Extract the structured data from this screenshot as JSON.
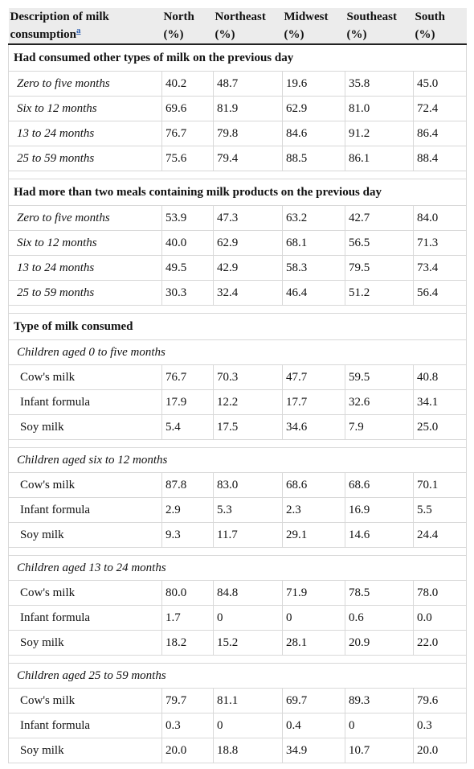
{
  "headers": {
    "desc_line1": "Description of milk",
    "desc_line2": "consumption",
    "footnote": "a",
    "cols": [
      {
        "name": "North",
        "unit": "(%)"
      },
      {
        "name": "Northeast",
        "unit": "(%)"
      },
      {
        "name": "Midwest",
        "unit": "(%)"
      },
      {
        "name": "Southeast",
        "unit": "(%)"
      },
      {
        "name": "South",
        "unit": "(%)"
      }
    ]
  },
  "sections": {
    "s1": {
      "title": "Had consumed other types of milk on the previous day",
      "rows": [
        {
          "label": "Zero to five months",
          "v": [
            "40.2",
            "48.7",
            "19.6",
            "35.8",
            "45.0"
          ]
        },
        {
          "label": "Six to 12 months",
          "v": [
            "69.6",
            "81.9",
            "62.9",
            "81.0",
            "72.4"
          ]
        },
        {
          "label": "13 to 24 months",
          "v": [
            "76.7",
            "79.8",
            "84.6",
            "91.2",
            "86.4"
          ]
        },
        {
          "label": "25 to 59 months",
          "v": [
            "75.6",
            "79.4",
            "88.5",
            "86.1",
            "88.4"
          ]
        }
      ]
    },
    "s2": {
      "title": "Had more than two meals containing milk products on the previous day",
      "rows": [
        {
          "label": "Zero to five months",
          "v": [
            "53.9",
            "47.3",
            "63.2",
            "42.7",
            "84.0"
          ]
        },
        {
          "label": "Six to 12 months",
          "v": [
            "40.0",
            "62.9",
            "68.1",
            "56.5",
            "71.3"
          ]
        },
        {
          "label": "13 to 24 months",
          "v": [
            "49.5",
            "42.9",
            "58.3",
            "79.5",
            "73.4"
          ]
        },
        {
          "label": "25 to 59 months",
          "v": [
            "30.3",
            "32.4",
            "46.4",
            "51.2",
            "56.4"
          ]
        }
      ]
    },
    "s3": {
      "title": "Type of milk consumed",
      "groups": [
        {
          "title": "Children aged 0 to five months",
          "rows": [
            {
              "label": "Cow's milk",
              "v": [
                "76.7",
                "70.3",
                "47.7",
                "59.5",
                "40.8"
              ]
            },
            {
              "label": "Infant formula",
              "v": [
                "17.9",
                "12.2",
                "17.7",
                "32.6",
                "34.1"
              ]
            },
            {
              "label": "Soy milk",
              "v": [
                "5.4",
                "17.5",
                "34.6",
                "7.9",
                "25.0"
              ]
            }
          ]
        },
        {
          "title": "Children aged six to 12 months",
          "rows": [
            {
              "label": "Cow's milk",
              "v": [
                "87.8",
                "83.0",
                "68.6",
                "68.6",
                "70.1"
              ]
            },
            {
              "label": "Infant formula",
              "v": [
                "2.9",
                "5.3",
                "2.3",
                "16.9",
                "5.5"
              ]
            },
            {
              "label": "Soy milk",
              "v": [
                "9.3",
                "11.7",
                "29.1",
                "14.6",
                "24.4"
              ]
            }
          ]
        },
        {
          "title": "Children aged 13 to 24 months",
          "rows": [
            {
              "label": "Cow's milk",
              "v": [
                "80.0",
                "84.8",
                "71.9",
                "78.5",
                "78.0"
              ]
            },
            {
              "label": "Infant formula",
              "v": [
                "1.7",
                "0",
                "0",
                "0.6",
                "0.0"
              ]
            },
            {
              "label": "Soy milk",
              "v": [
                "18.2",
                "15.2",
                "28.1",
                "20.9",
                "22.0"
              ]
            }
          ]
        },
        {
          "title": "Children aged 25 to 59 months",
          "rows": [
            {
              "label": "Cow's milk",
              "v": [
                "79.7",
                "81.1",
                "69.7",
                "89.3",
                "79.6"
              ]
            },
            {
              "label": "Infant formula",
              "v": [
                "0.3",
                "0",
                "0.4",
                "0",
                "0.3"
              ]
            },
            {
              "label": "Soy milk",
              "v": [
                "20.0",
                "18.8",
                "34.9",
                "10.7",
                "20.0"
              ]
            }
          ]
        }
      ]
    }
  }
}
